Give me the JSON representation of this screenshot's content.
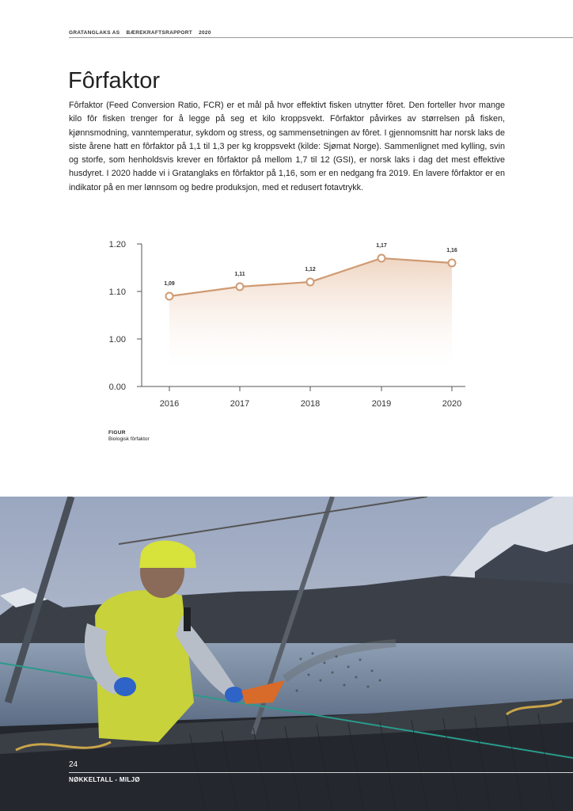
{
  "header": {
    "company": "GRATANGLAKS AS",
    "report": "BÆREKRAFTSRAPPORT",
    "year": "2020"
  },
  "page_title": "Fôrfaktor",
  "body_text": "Fôrfaktor (Feed Conversion Ratio, FCR) er et mål på hvor effektivt fisken utnytter fôret. Den forteller hvor mange kilo fôr fisken trenger for å legge på seg et kilo kroppsvekt. Fôrfaktor påvirkes av størrelsen på fisken, kjønnsmodning, vanntemperatur, sykdom og stress, og sammensetningen av fôret. I gjennomsnitt har norsk laks de siste årene hatt en fôrfaktor på 1,1 til 1,3 per kg kroppsvekt (kilde: Sjømat Norge). Sammenlignet med kylling, svin og storfe, som henholdsvis krever en fôrfaktor på mellom 1,7 til 12 (GSI), er norsk laks i dag det mest effektive husdyret. I 2020 hadde vi i Gratanglaks en fôrfaktor på 1,16, som er en nedgang fra 2019. En lavere fôrfaktor er en indikator på en mer lønnsom og bedre produksjon, med et redusert fotavtrykk.",
  "chart_data": {
    "type": "area",
    "categories": [
      "2016",
      "2017",
      "2018",
      "2019",
      "2020"
    ],
    "values": [
      1.09,
      1.11,
      1.12,
      1.17,
      1.16
    ],
    "data_labels": [
      "1,09",
      "1,11",
      "1,12",
      "1,17",
      "1,16"
    ],
    "y_ticks": [
      "0.00",
      "1.00",
      "1.10",
      "1.20"
    ],
    "y_axis": "broken scale: 0.00, then 1.00 to 1.20",
    "grid": false,
    "line_color": "#cf9a72",
    "fill_color": "#f0dccb"
  },
  "figure_caption": {
    "label": "FIGUR",
    "text": "Biologisk fôrfaktor"
  },
  "photo": {
    "description": "fish farm worker feeding salmon from net pen"
  },
  "footer": {
    "page_number": "24",
    "section": "NØKKELTALL - MILJØ"
  }
}
